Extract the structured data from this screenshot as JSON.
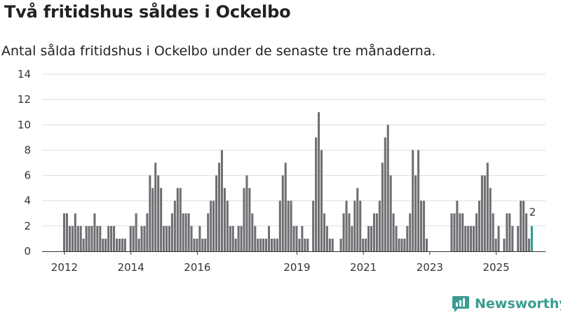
{
  "title": "Två fritidshus såldes i Ockelbo",
  "subtitle": "Antal sålda fritidshus i Ockelbo under de senaste tre månaderna.",
  "brand": {
    "label": "Newsworthy",
    "icon": "newsworthy-logo-icon"
  },
  "colors": {
    "bar": "#6e6e73",
    "highlight": "#2a9d8f",
    "grid": "#dddddd",
    "axis": "#333333"
  },
  "chart_data": {
    "type": "bar",
    "title": "Två fritidshus såldes i Ockelbo",
    "xlabel": "",
    "ylabel": "",
    "ylim": [
      0,
      14
    ],
    "yticks": [
      0,
      2,
      4,
      6,
      8,
      10,
      12,
      14
    ],
    "xticks": [
      "2012",
      "2014",
      "2016",
      "2019",
      "2021",
      "2023",
      "2025"
    ],
    "grid": true,
    "start_month": "2012-01",
    "values": [
      3,
      3,
      2,
      2,
      3,
      2,
      2,
      1,
      2,
      2,
      2,
      3,
      2,
      2,
      1,
      1,
      2,
      2,
      2,
      1,
      1,
      1,
      1,
      0,
      2,
      2,
      3,
      1,
      2,
      2,
      3,
      6,
      5,
      7,
      6,
      5,
      2,
      2,
      2,
      3,
      4,
      5,
      5,
      3,
      3,
      3,
      2,
      1,
      1,
      2,
      1,
      1,
      3,
      4,
      4,
      6,
      7,
      8,
      5,
      4,
      2,
      2,
      1,
      2,
      2,
      5,
      6,
      5,
      3,
      2,
      1,
      1,
      1,
      1,
      2,
      1,
      1,
      1,
      4,
      6,
      7,
      4,
      4,
      2,
      2,
      1,
      2,
      1,
      1,
      0,
      4,
      9,
      11,
      8,
      3,
      2,
      1,
      1,
      0,
      0,
      1,
      3,
      4,
      3,
      2,
      4,
      5,
      4,
      1,
      1,
      2,
      2,
      3,
      3,
      4,
      7,
      9,
      10,
      6,
      3,
      2,
      1,
      1,
      1,
      2,
      3,
      8,
      6,
      8,
      4,
      4,
      1,
      0,
      0,
      0,
      0,
      0,
      0,
      0,
      0,
      3,
      3,
      4,
      3,
      3,
      2,
      2,
      2,
      2,
      3,
      4,
      6,
      6,
      7,
      5,
      3,
      1,
      2,
      0,
      1,
      3,
      3,
      2,
      0,
      2,
      4,
      4,
      3,
      1,
      2
    ],
    "highlight_last": true,
    "annotation": {
      "text": "2"
    }
  }
}
